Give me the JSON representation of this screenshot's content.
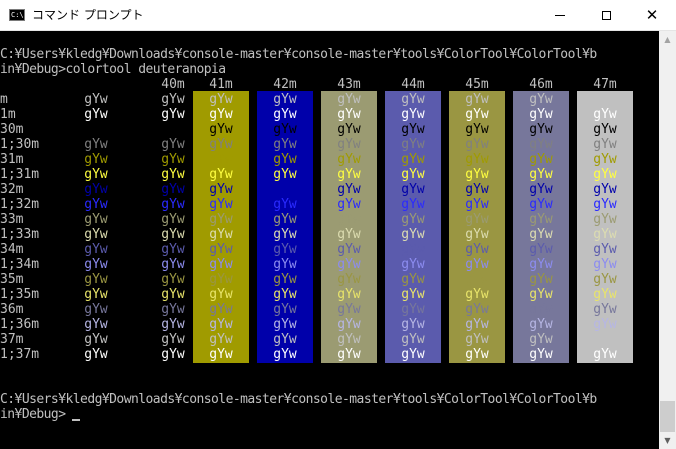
{
  "window": {
    "title": "コマンド プロンプト",
    "icon_name": "cmd-icon",
    "icon_text": "C:\\",
    "buttons": {
      "minimize": "minimize-icon",
      "maximize": "maximize-icon",
      "close": "close-icon",
      "close_glyph": "✕"
    },
    "scrollbar": {
      "up": "▲",
      "down": "▼"
    }
  },
  "console": {
    "prompt_line1": "C:¥Users¥kledg¥Downloads¥console-master¥console-master¥tools¥ColorTool¥ColorTool¥b",
    "prompt_line2": "in¥Debug>colortool deuteranopia",
    "end_line1": "C:¥Users¥kledg¥Downloads¥console-master¥console-master¥tools¥ColorTool¥ColorTool¥b",
    "end_line2": "in¥Debug>",
    "sample": "gYw",
    "col_headers": [
      "40m",
      "41m",
      "42m",
      "43m",
      "44m",
      "45m",
      "46m",
      "47m"
    ],
    "bg_colors": [
      "#000000",
      "#a09b00",
      "#0000aa",
      "#9b9b72",
      "#5b5bad",
      "#9a9642",
      "#77779b",
      "#c0c0c0"
    ],
    "rows": [
      {
        "label": "m",
        "fg": "#c0c0c0",
        "fg_col1": "#c0c0c0",
        "fg_by_col": [
          "#c0c0c0",
          "#c0c0c0",
          "#c0c0c0",
          "#c0c0c0",
          "#c0c0c0",
          "#c0c0c0",
          "#c0c0c0",
          "#c0c0c0"
        ]
      },
      {
        "label": "1m",
        "fg": "#ffffff",
        "fg_col1": "#ffffff",
        "fg_by_col": [
          "#ffffff",
          "#ffffff",
          "#ffffff",
          "#ffffff",
          "#ffffff",
          "#ffffff",
          "#ffffff",
          "#ffffff"
        ]
      },
      {
        "label": "30m",
        "fg": "#000000",
        "fg_col1": "#000000",
        "fg_by_col": [
          "#000000",
          "#000000",
          "#000000",
          "#000000",
          "#000000",
          "#000000",
          "#000000",
          "#000000"
        ]
      },
      {
        "label": "1;30m",
        "fg": "#808080",
        "fg_col1": "#808080",
        "fg_by_col": [
          "#808080",
          "#808080",
          "#808080",
          "#808080",
          "#808080",
          "#808080",
          "#808080",
          "#808080"
        ]
      },
      {
        "label": "31m",
        "fg": "#a09b00",
        "fg_col1": "#a09b00",
        "fg_by_col": [
          "#a09b00",
          "#a09b00",
          "#a09b00",
          "#a09b00",
          "#a09b00",
          "#a09b00",
          "#a09b00",
          "#a09b00"
        ]
      },
      {
        "label": "1;31m",
        "fg": "#ffff40",
        "fg_col1": "#ffff40",
        "fg_by_col": [
          "#ffff40",
          "#ffff40",
          "#ffff40",
          "#ffff40",
          "#ffff40",
          "#ffff40",
          "#ffff40",
          "#ffff40"
        ]
      },
      {
        "label": "32m",
        "fg": "#0000aa",
        "fg_col1": "#0000aa",
        "fg_by_col": [
          "#0000aa",
          "#0000aa",
          "#0000aa",
          "#0000aa",
          "#0000aa",
          "#0000aa",
          "#0000aa",
          "#0000aa"
        ]
      },
      {
        "label": "1;32m",
        "fg": "#2a2aff",
        "fg_col1": "#2a2aff",
        "fg_by_col": [
          "#2a2aff",
          "#2a2aff",
          "#2a2aff",
          "#2a2aff",
          "#2a2aff",
          "#2a2aff",
          "#2a2aff",
          "#2a2aff"
        ]
      },
      {
        "label": "33m",
        "fg": "#9b9b72",
        "fg_col1": "#9b9b72",
        "fg_by_col": [
          "#9b9b72",
          "#9b9b72",
          "#9b9b72",
          "#9b9b72",
          "#9b9b72",
          "#9b9b72",
          "#9b9b72",
          "#9b9b72"
        ]
      },
      {
        "label": "1;33m",
        "fg": "#dcdcb0",
        "fg_col1": "#dcdcb0",
        "fg_by_col": [
          "#dcdcb0",
          "#dcdcb0",
          "#dcdcb0",
          "#dcdcb0",
          "#dcdcb0",
          "#dcdcb0",
          "#dcdcb0",
          "#dcdcb0"
        ]
      },
      {
        "label": "34m",
        "fg": "#5b5bad",
        "fg_col1": "#5b5bad",
        "fg_by_col": [
          "#5b5bad",
          "#5b5bad",
          "#5b5bad",
          "#5b5bad",
          "#5b5bad",
          "#5b5bad",
          "#5b5bad",
          "#5b5bad"
        ]
      },
      {
        "label": "1;34m",
        "fg": "#8c8cf0",
        "fg_col1": "#8c8cf0",
        "fg_by_col": [
          "#8c8cf0",
          "#8c8cf0",
          "#8c8cf0",
          "#8c8cf0",
          "#8c8cf0",
          "#8c8cf0",
          "#8c8cf0",
          "#8c8cf0"
        ]
      },
      {
        "label": "35m",
        "fg": "#9a9642",
        "fg_col1": "#9a9642",
        "fg_by_col": [
          "#9a9642",
          "#9a9642",
          "#9a9642",
          "#9a9642",
          "#9a9642",
          "#9a9642",
          "#9a9642",
          "#9a9642"
        ]
      },
      {
        "label": "1;35m",
        "fg": "#e8e46a",
        "fg_col1": "#e8e46a",
        "fg_by_col": [
          "#e8e46a",
          "#e8e46a",
          "#e8e46a",
          "#e8e46a",
          "#e8e46a",
          "#e8e46a",
          "#e8e46a",
          "#e8e46a"
        ]
      },
      {
        "label": "36m",
        "fg": "#77779b",
        "fg_col1": "#77779b",
        "fg_by_col": [
          "#77779b",
          "#77779b",
          "#77779b",
          "#77779b",
          "#77779b",
          "#77779b",
          "#77779b",
          "#77779b"
        ]
      },
      {
        "label": "1;36m",
        "fg": "#b6b6e4",
        "fg_col1": "#b6b6e4",
        "fg_by_col": [
          "#b6b6e4",
          "#b6b6e4",
          "#b6b6e4",
          "#b6b6e4",
          "#b6b6e4",
          "#b6b6e4",
          "#b6b6e4",
          "#b6b6e4"
        ]
      },
      {
        "label": "37m",
        "fg": "#c0c0c0",
        "fg_col1": "#c0c0c0",
        "fg_by_col": [
          "#c0c0c0",
          "#c0c0c0",
          "#c0c0c0",
          "#c0c0c0",
          "#c0c0c0",
          "#c0c0c0",
          "#c0c0c0",
          "#c0c0c0"
        ]
      },
      {
        "label": "1;37m",
        "fg": "#ffffff",
        "fg_col1": "#ffffff",
        "fg_by_col": [
          "#ffffff",
          "#ffffff",
          "#ffffff",
          "#ffffff",
          "#ffffff",
          "#ffffff",
          "#ffffff",
          "#ffffff"
        ]
      }
    ]
  }
}
